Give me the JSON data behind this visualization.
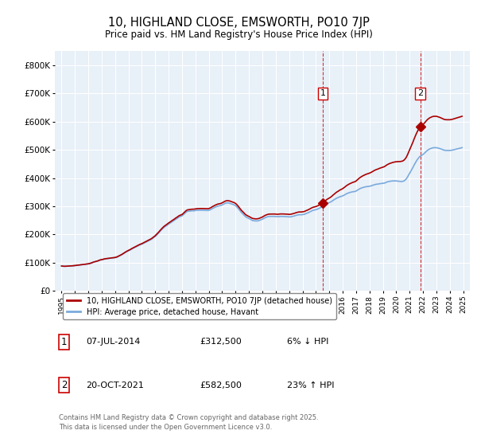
{
  "title": "10, HIGHLAND CLOSE, EMSWORTH, PO10 7JP",
  "subtitle": "Price paid vs. HM Land Registry's House Price Index (HPI)",
  "legend_property": "10, HIGHLAND CLOSE, EMSWORTH, PO10 7JP (detached house)",
  "legend_hpi": "HPI: Average price, detached house, Havant",
  "footer": "Contains HM Land Registry data © Crown copyright and database right 2025.\nThis data is licensed under the Open Government Licence v3.0.",
  "sale1_label": "1",
  "sale1_date": "07-JUL-2014",
  "sale1_price": "£312,500",
  "sale1_hpi": "6% ↓ HPI",
  "sale2_label": "2",
  "sale2_date": "20-OCT-2021",
  "sale2_price": "£582,500",
  "sale2_hpi": "23% ↑ HPI",
  "sale1_x": 2014.52,
  "sale2_x": 2021.8,
  "sale1_y": 312500,
  "sale2_y": 582500,
  "property_color": "#aa0000",
  "hpi_color": "#7aaadd",
  "vline_color": "#cc0000",
  "chart_bg": "#e8f0f8",
  "ylim": [
    0,
    850000
  ],
  "yticks": [
    0,
    100000,
    200000,
    300000,
    400000,
    500000,
    600000,
    700000,
    800000
  ],
  "ytick_labels": [
    "£0",
    "£100K",
    "£200K",
    "£300K",
    "£400K",
    "£500K",
    "£600K",
    "£700K",
    "£800K"
  ],
  "xlim": [
    1994.5,
    2025.5
  ],
  "xticks": [
    1995,
    1996,
    1997,
    1998,
    1999,
    2000,
    2001,
    2002,
    2003,
    2004,
    2005,
    2006,
    2007,
    2008,
    2009,
    2010,
    2011,
    2012,
    2013,
    2014,
    2015,
    2016,
    2017,
    2018,
    2019,
    2020,
    2021,
    2022,
    2023,
    2024,
    2025
  ],
  "hpi_data_years": [
    1995.0,
    1995.083,
    1995.167,
    1995.25,
    1995.333,
    1995.417,
    1995.5,
    1995.583,
    1995.667,
    1995.75,
    1995.833,
    1995.917,
    1996.0,
    1996.083,
    1996.167,
    1996.25,
    1996.333,
    1996.417,
    1996.5,
    1996.583,
    1996.667,
    1996.75,
    1996.833,
    1996.917,
    1997.0,
    1997.083,
    1997.167,
    1997.25,
    1997.333,
    1997.417,
    1997.5,
    1997.583,
    1997.667,
    1997.75,
    1997.833,
    1997.917,
    1998.0,
    1998.083,
    1998.167,
    1998.25,
    1998.333,
    1998.417,
    1998.5,
    1998.583,
    1998.667,
    1998.75,
    1998.833,
    1998.917,
    1999.0,
    1999.083,
    1999.167,
    1999.25,
    1999.333,
    1999.417,
    1999.5,
    1999.583,
    1999.667,
    1999.75,
    1999.833,
    1999.917,
    2000.0,
    2000.083,
    2000.167,
    2000.25,
    2000.333,
    2000.417,
    2000.5,
    2000.583,
    2000.667,
    2000.75,
    2000.833,
    2000.917,
    2001.0,
    2001.083,
    2001.167,
    2001.25,
    2001.333,
    2001.417,
    2001.5,
    2001.583,
    2001.667,
    2001.75,
    2001.833,
    2001.917,
    2002.0,
    2002.083,
    2002.167,
    2002.25,
    2002.333,
    2002.417,
    2002.5,
    2002.583,
    2002.667,
    2002.75,
    2002.833,
    2002.917,
    2003.0,
    2003.083,
    2003.167,
    2003.25,
    2003.333,
    2003.417,
    2003.5,
    2003.583,
    2003.667,
    2003.75,
    2003.833,
    2003.917,
    2004.0,
    2004.083,
    2004.167,
    2004.25,
    2004.333,
    2004.417,
    2004.5,
    2004.583,
    2004.667,
    2004.75,
    2004.833,
    2004.917,
    2005.0,
    2005.083,
    2005.167,
    2005.25,
    2005.333,
    2005.417,
    2005.5,
    2005.583,
    2005.667,
    2005.75,
    2005.833,
    2005.917,
    2006.0,
    2006.083,
    2006.167,
    2006.25,
    2006.333,
    2006.417,
    2006.5,
    2006.583,
    2006.667,
    2006.75,
    2006.833,
    2006.917,
    2007.0,
    2007.083,
    2007.167,
    2007.25,
    2007.333,
    2007.417,
    2007.5,
    2007.583,
    2007.667,
    2007.75,
    2007.833,
    2007.917,
    2008.0,
    2008.083,
    2008.167,
    2008.25,
    2008.333,
    2008.417,
    2008.5,
    2008.583,
    2008.667,
    2008.75,
    2008.833,
    2008.917,
    2009.0,
    2009.083,
    2009.167,
    2009.25,
    2009.333,
    2009.417,
    2009.5,
    2009.583,
    2009.667,
    2009.75,
    2009.833,
    2009.917,
    2010.0,
    2010.083,
    2010.167,
    2010.25,
    2010.333,
    2010.417,
    2010.5,
    2010.583,
    2010.667,
    2010.75,
    2010.833,
    2010.917,
    2011.0,
    2011.083,
    2011.167,
    2011.25,
    2011.333,
    2011.417,
    2011.5,
    2011.583,
    2011.667,
    2011.75,
    2011.833,
    2011.917,
    2012.0,
    2012.083,
    2012.167,
    2012.25,
    2012.333,
    2012.417,
    2012.5,
    2012.583,
    2012.667,
    2012.75,
    2012.833,
    2012.917,
    2013.0,
    2013.083,
    2013.167,
    2013.25,
    2013.333,
    2013.417,
    2013.5,
    2013.583,
    2013.667,
    2013.75,
    2013.833,
    2013.917,
    2014.0,
    2014.083,
    2014.167,
    2014.25,
    2014.333,
    2014.417,
    2014.5,
    2014.583,
    2014.667,
    2014.75,
    2014.833,
    2014.917,
    2015.0,
    2015.083,
    2015.167,
    2015.25,
    2015.333,
    2015.417,
    2015.5,
    2015.583,
    2015.667,
    2015.75,
    2015.833,
    2015.917,
    2016.0,
    2016.083,
    2016.167,
    2016.25,
    2016.333,
    2016.417,
    2016.5,
    2016.583,
    2016.667,
    2016.75,
    2016.833,
    2016.917,
    2017.0,
    2017.083,
    2017.167,
    2017.25,
    2017.333,
    2017.417,
    2017.5,
    2017.583,
    2017.667,
    2017.75,
    2017.833,
    2017.917,
    2018.0,
    2018.083,
    2018.167,
    2018.25,
    2018.333,
    2018.417,
    2018.5,
    2018.583,
    2018.667,
    2018.75,
    2018.833,
    2018.917,
    2019.0,
    2019.083,
    2019.167,
    2019.25,
    2019.333,
    2019.417,
    2019.5,
    2019.583,
    2019.667,
    2019.75,
    2019.833,
    2019.917,
    2020.0,
    2020.083,
    2020.167,
    2020.25,
    2020.333,
    2020.417,
    2020.5,
    2020.583,
    2020.667,
    2020.75,
    2020.833,
    2020.917,
    2021.0,
    2021.083,
    2021.167,
    2021.25,
    2021.333,
    2021.417,
    2021.5,
    2021.583,
    2021.667,
    2021.75,
    2021.833,
    2021.917,
    2022.0,
    2022.083,
    2022.167,
    2022.25,
    2022.333,
    2022.417,
    2022.5,
    2022.583,
    2022.667,
    2022.75,
    2022.833,
    2022.917,
    2023.0,
    2023.083,
    2023.167,
    2023.25,
    2023.333,
    2023.417,
    2023.5,
    2023.583,
    2023.667,
    2023.75,
    2023.833,
    2023.917,
    2024.0,
    2024.083,
    2024.167,
    2024.25,
    2024.333,
    2024.417,
    2024.5,
    2024.583,
    2024.667,
    2024.75,
    2024.833,
    2024.917
  ],
  "hpi_data_values": [
    88000,
    87500,
    87200,
    87000,
    87200,
    87500,
    87800,
    88000,
    88200,
    88500,
    88700,
    89000,
    89500,
    90000,
    90500,
    91000,
    91500,
    92000,
    92500,
    93000,
    93500,
    94000,
    94500,
    95000,
    95500,
    96500,
    97500,
    99000,
    100500,
    102000,
    103000,
    104000,
    105000,
    106500,
    108000,
    109500,
    110000,
    111000,
    112000,
    113000,
    113500,
    114000,
    114500,
    115000,
    115500,
    116000,
    116500,
    117000,
    117500,
    118500,
    120000,
    122000,
    124000,
    126000,
    128000,
    130500,
    133000,
    135500,
    138000,
    140000,
    142000,
    144000,
    146000,
    148500,
    150500,
    152500,
    154500,
    156500,
    158500,
    160500,
    162500,
    164000,
    165500,
    167500,
    169500,
    171500,
    173500,
    175500,
    177500,
    179500,
    181500,
    184000,
    187000,
    190000,
    193000,
    197000,
    201000,
    205000,
    209500,
    214000,
    218000,
    222000,
    225500,
    228500,
    231000,
    234000,
    237000,
    239500,
    242000,
    245000,
    247500,
    250000,
    253000,
    255500,
    258000,
    261000,
    263000,
    264500,
    266000,
    269500,
    273000,
    277000,
    280000,
    282000,
    282500,
    283000,
    283500,
    284000,
    284000,
    284000,
    285000,
    285500,
    285800,
    286000,
    286000,
    286000,
    286000,
    285800,
    285600,
    285200,
    285000,
    285000,
    285500,
    287000,
    289000,
    291500,
    293500,
    295500,
    297500,
    299000,
    300500,
    301500,
    302000,
    303000,
    305000,
    307000,
    309000,
    311000,
    312000,
    312000,
    311500,
    310500,
    309000,
    307500,
    306000,
    304500,
    302000,
    298500,
    294000,
    289000,
    284000,
    279000,
    275000,
    271000,
    267000,
    263000,
    260500,
    258500,
    256500,
    254500,
    252000,
    250000,
    249000,
    248500,
    248000,
    248000,
    248500,
    249500,
    251000,
    252500,
    254000,
    256500,
    258500,
    260500,
    262000,
    263000,
    264000,
    264000,
    264000,
    264000,
    264000,
    264000,
    263500,
    263200,
    263000,
    263500,
    264000,
    264000,
    264000,
    263800,
    263500,
    263000,
    263000,
    263000,
    262000,
    262500,
    263000,
    264000,
    265000,
    266000,
    267500,
    268500,
    269500,
    270000,
    270000,
    270000,
    270500,
    271000,
    272000,
    274000,
    275500,
    277000,
    279000,
    281000,
    283000,
    285000,
    286000,
    287000,
    288000,
    289500,
    291000,
    293000,
    295000,
    297500,
    300000,
    302500,
    305000,
    307500,
    310000,
    311500,
    313000,
    315000,
    317000,
    320000,
    322500,
    325000,
    327500,
    329500,
    331000,
    333000,
    334500,
    335500,
    337000,
    339000,
    341000,
    343500,
    345500,
    347000,
    348500,
    349500,
    350500,
    351500,
    352000,
    352500,
    354000,
    356500,
    359000,
    361500,
    363500,
    365000,
    366500,
    367500,
    368500,
    369500,
    370000,
    370500,
    371000,
    372000,
    373000,
    374500,
    376000,
    377000,
    378000,
    378500,
    379000,
    380000,
    380500,
    381000,
    381500,
    382000,
    383000,
    385000,
    386500,
    387500,
    388500,
    389000,
    389500,
    390000,
    390000,
    390000,
    390000,
    389500,
    389000,
    388500,
    388000,
    388000,
    388500,
    390000,
    393000,
    397000,
    403000,
    410000,
    417000,
    424000,
    431000,
    438000,
    446000,
    453000,
    460000,
    466000,
    471000,
    476000,
    479000,
    481000,
    484000,
    487500,
    491000,
    495000,
    498500,
    501000,
    503500,
    505000,
    506500,
    507500,
    508000,
    508000,
    508000,
    507000,
    506000,
    505000,
    503500,
    502000,
    500500,
    499000,
    498500,
    498000,
    498000,
    498000,
    498000,
    498500,
    499000,
    500000,
    501000,
    502000,
    503000,
    504000,
    505000,
    506000,
    507000,
    508000
  ]
}
